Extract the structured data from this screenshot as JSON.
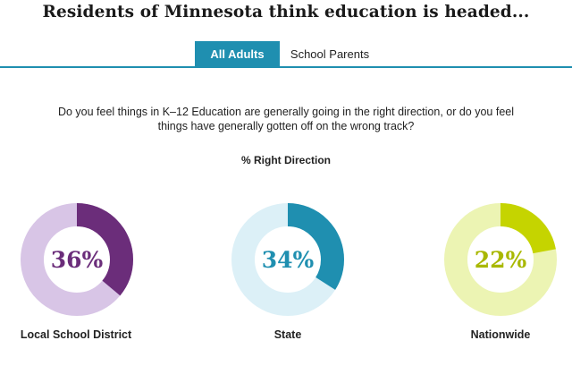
{
  "title": "Residents of Minnesota think education is headed...",
  "tabs": [
    {
      "label": "All Adults",
      "active": true
    },
    {
      "label": "School Parents",
      "active": false
    }
  ],
  "question": "Do you feel things in K–12 Education are generally going in the right direction, or do you feel things have generally gotten off on the wrong track?",
  "measure": "% Right Direction",
  "colors": {
    "tab_accent": "#1f8fb0"
  },
  "chart_data": {
    "type": "pie",
    "title": "Residents of Minnesota think education is headed...",
    "subtitle": "% Right Direction",
    "series": [
      {
        "category": "Local School District",
        "value": 36,
        "label": "36%",
        "color": "#6b2d7a",
        "track_color": "#d8c5e6"
      },
      {
        "category": "State",
        "value": 34,
        "label": "34%",
        "color": "#1f8fb0",
        "track_color": "#dcf0f7"
      },
      {
        "category": "Nationwide",
        "value": 22,
        "label": "22%",
        "color": "#c5d400",
        "track_color": "#ecf4b3"
      }
    ]
  }
}
